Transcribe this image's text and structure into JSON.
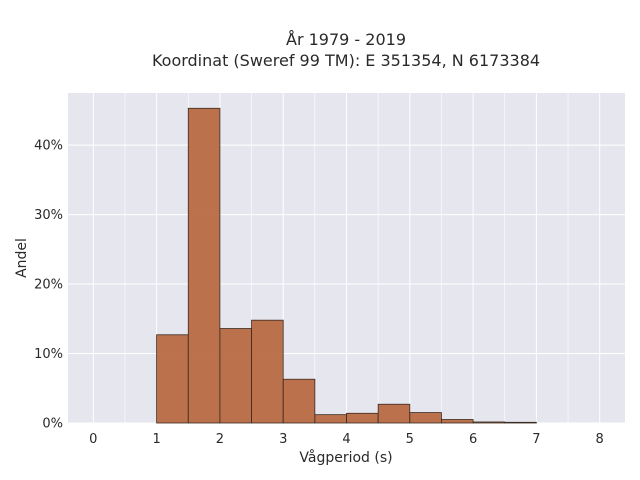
{
  "chart_data": {
    "type": "bar",
    "title_line1": "År 1979 - 2019",
    "title_line2": "Koordinat (Sweref 99 TM): E 351354, N 6173384",
    "xlabel": "Vågperiod (s)",
    "ylabel": "Andel",
    "xlim": [
      -0.4,
      8.4
    ],
    "ylim": [
      0,
      47.5
    ],
    "x_ticks": [
      0,
      1,
      2,
      3,
      4,
      5,
      6,
      7,
      8
    ],
    "x_tick_labels": [
      "0",
      "1",
      "2",
      "3",
      "4",
      "5",
      "6",
      "7",
      "8"
    ],
    "y_ticks": [
      0,
      10,
      20,
      30,
      40
    ],
    "y_tick_labels": [
      "0%",
      "10%",
      "20%",
      "30%",
      "40%"
    ],
    "bin_width": 0.5,
    "bins": [
      {
        "start": 1.0,
        "value": 12.7
      },
      {
        "start": 1.5,
        "value": 45.3
      },
      {
        "start": 2.0,
        "value": 13.6
      },
      {
        "start": 2.5,
        "value": 14.8
      },
      {
        "start": 3.0,
        "value": 6.3
      },
      {
        "start": 3.5,
        "value": 1.2
      },
      {
        "start": 4.0,
        "value": 1.4
      },
      {
        "start": 4.5,
        "value": 2.7
      },
      {
        "start": 5.0,
        "value": 1.5
      },
      {
        "start": 5.5,
        "value": 0.5
      },
      {
        "start": 6.0,
        "value": 0.15
      },
      {
        "start": 6.5,
        "value": 0.1
      }
    ],
    "grid": true,
    "colors": {
      "bar_fill": "#B5643A",
      "bar_stroke": "#3a2a20",
      "plot_bg": "#E6E6EF",
      "grid": "#ffffff"
    }
  }
}
